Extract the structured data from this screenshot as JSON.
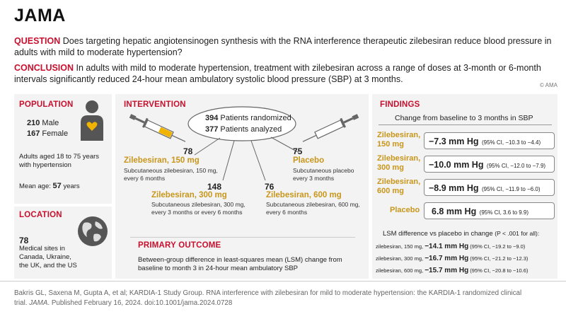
{
  "journal": "JAMA",
  "question": {
    "label": "QUESTION",
    "text": "Does targeting hepatic angiotensinogen synthesis with the RNA interference therapeutic zilebesiran reduce blood pressure in adults with mild to moderate hypertension?"
  },
  "conclusion": {
    "label": "CONCLUSION",
    "text": "In adults with mild to moderate hypertension, treatment with zilebesiran across a range of doses at 3-month or 6-month intervals significantly reduced 24-hour mean ambulatory systolic blood pressure (SBP) at 3 months."
  },
  "copyright": "© AMA",
  "population": {
    "header": "POPULATION",
    "male_n": "210",
    "male_label": "Male",
    "female_n": "167",
    "female_label": "Female",
    "desc": "Adults aged 18 to 75 years with hypertension",
    "mean_age_label": "Mean age:",
    "mean_age_value": "57",
    "mean_age_unit": "years"
  },
  "location": {
    "header": "LOCATION",
    "n": "78",
    "desc": "Medical sites in Canada, Ukraine, the UK, and the US"
  },
  "intervention": {
    "header": "INTERVENTION",
    "randomized_n": "394",
    "randomized_label": "Patients randomized",
    "analyzed_n": "377",
    "analyzed_label": "Patients analyzed",
    "arms": [
      {
        "n": "78",
        "name": "Zilebesiran, 150 mg",
        "desc": "Subcutaneous zilebesiran, 150 mg, every 6 months"
      },
      {
        "n": "148",
        "name": "Zilebesiran, 300 mg",
        "desc": "Subcutaneous zilebesiran, 300 mg, every 3 months or every 6 months"
      },
      {
        "n": "76",
        "name": "Zilebesiran, 600 mg",
        "desc": "Subcutaneous zilebesiran, 600 mg, every 6 months"
      },
      {
        "n": "75",
        "name": "Placebo",
        "desc": "Subcutaneous placebo every 3 months"
      }
    ]
  },
  "primary_outcome": {
    "header": "PRIMARY OUTCOME",
    "text": "Between-group difference in least-squares mean (LSM) change from baseline to month 3 in 24-hour mean ambulatory SBP"
  },
  "findings": {
    "header": "FINDINGS",
    "subtitle": "Change from baseline to 3 months in SBP",
    "rows": [
      {
        "label": "Zilebesiran, 150 mg",
        "value": "−7.3 mm Hg",
        "ci": "(95% CI, −10.3 to −4.4)"
      },
      {
        "label": "Zilebesiran, 300 mg",
        "value": "−10.0 mm Hg",
        "ci": "(95% CI, −12.0 to −7.9)"
      },
      {
        "label": "Zilebesiran, 600 mg",
        "value": "−8.9 mm Hg",
        "ci": "(95% CI, −11.9 to −6.0)"
      },
      {
        "label": "Placebo",
        "value": "6.8 mm Hg",
        "ci": "(95% CI, 3.6 to 9.9)"
      }
    ],
    "lsm_title": "LSM difference vs placebo in change",
    "lsm_p": "(P < .001 for all):",
    "lsm_rows": [
      {
        "label": "zilebesiran, 150 mg,",
        "value": "−14.1 mm Hg",
        "ci": "(95% CI, −19.2 to −9.0)"
      },
      {
        "label": "zilebesiran, 300 mg,",
        "value": "−16.7 mm Hg",
        "ci": "(95% CI, −21.2 to −12.3)"
      },
      {
        "label": "zilebesiran, 600 mg,",
        "value": "−15.7 mm Hg",
        "ci": "(95% CI, −20.8 to −10.6)"
      }
    ]
  },
  "citation": {
    "pre": "Bakris GL, Saxena M, Gupta A, et al; KARDIA-1 Study Group. RNA interference with zilebesiran for mild to moderate hypertension: the KARDIA-1 randomized clinical trial.",
    "journal": "JAMA",
    "post": ". Published February 16, 2024. doi:10.1001/jama.2024.0728"
  },
  "colors": {
    "accent_red": "#c8102e",
    "gold": "#c8961a",
    "panel_bg": "#f3f3f3"
  },
  "icons": [
    "person-icon",
    "heart-icon",
    "globe-icon",
    "syringe-icon"
  ]
}
